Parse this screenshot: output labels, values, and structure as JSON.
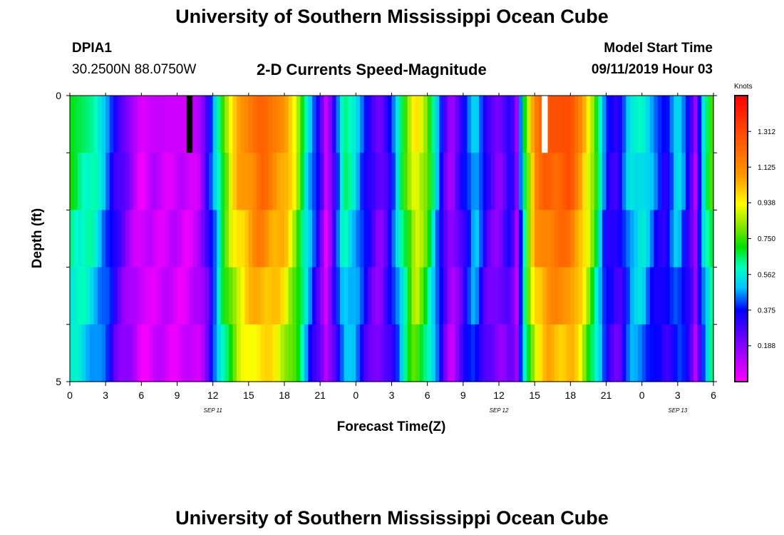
{
  "header": {
    "title": "University of Southern Mississippi Ocean Cube",
    "station": "DPIA1",
    "location": "30.2500N 88.0750W",
    "product": "2-D Currents Speed-Magnitude",
    "model_label": "Model Start Time",
    "model_time": "09/11/2019 Hour 03"
  },
  "footer": {
    "title": "University of Southern Mississippi Ocean Cube"
  },
  "chart_data": {
    "type": "heatmap",
    "xlabel": "Forecast Time(Z)",
    "ylabel": "Depth (ft)",
    "x_tick_labels": [
      "0",
      "3",
      "6",
      "9",
      "12",
      "15",
      "18",
      "21",
      "0",
      "3",
      "6",
      "9",
      "12",
      "15",
      "18",
      "21",
      "0",
      "3",
      "6"
    ],
    "x_hours": [
      0,
      3,
      6,
      9,
      12,
      15,
      18,
      21,
      24,
      27,
      30,
      33,
      36,
      39,
      42,
      45,
      48,
      51,
      54
    ],
    "x_range_hours": [
      0,
      54
    ],
    "date_labels": [
      {
        "text": "SEP 11",
        "hour": 12
      },
      {
        "text": "SEP 12",
        "hour": 36
      },
      {
        "text": "SEP 13",
        "hour": 51
      }
    ],
    "y_tick_labels": [
      "0",
      "5"
    ],
    "y_range": [
      0,
      5
    ],
    "y_minor_ticks": [
      0,
      1,
      2,
      3,
      4,
      5
    ],
    "depth_layers": 5,
    "colorbar": {
      "unit": "Knots",
      "range": [
        0,
        1.5
      ],
      "ticks": [
        "1.312",
        "1.125",
        "0.938",
        "0.750",
        "0.562",
        "0.375",
        "0.188"
      ],
      "tick_values": [
        1.312,
        1.125,
        0.938,
        0.75,
        0.562,
        0.375,
        0.188
      ]
    },
    "speed_profile_knots": [
      {
        "hour": 0,
        "v": 0.7
      },
      {
        "hour": 2,
        "v": 0.62
      },
      {
        "hour": 3.3,
        "v": 0.45
      },
      {
        "hour": 4,
        "v": 0.3
      },
      {
        "hour": 5,
        "v": 0.18
      },
      {
        "hour": 6,
        "v": 0.05
      },
      {
        "hour": 7,
        "v": 0.09
      },
      {
        "hour": 10,
        "v": 0.07
      },
      {
        "hour": 10.8,
        "v": 0.12
      },
      {
        "hour": 11.3,
        "v": 0.22
      },
      {
        "hour": 12,
        "v": 0.45
      },
      {
        "hour": 13,
        "v": 0.8
      },
      {
        "hour": 14,
        "v": 1.05
      },
      {
        "hour": 16,
        "v": 1.25
      },
      {
        "hour": 18,
        "v": 1.1
      },
      {
        "hour": 19,
        "v": 0.9
      },
      {
        "hour": 20,
        "v": 0.55
      },
      {
        "hour": 21,
        "v": 0.3
      },
      {
        "hour": 21.5,
        "v": 0.08
      },
      {
        "hour": 22,
        "v": 0.25
      },
      {
        "hour": 23,
        "v": 0.65
      },
      {
        "hour": 24,
        "v": 0.55
      },
      {
        "hour": 25,
        "v": 0.35
      },
      {
        "hour": 26,
        "v": 0.2
      },
      {
        "hour": 27,
        "v": 0.4
      },
      {
        "hour": 28,
        "v": 0.7
      },
      {
        "hour": 29,
        "v": 1.0
      },
      {
        "hour": 30,
        "v": 0.8
      },
      {
        "hour": 31,
        "v": 0.45
      },
      {
        "hour": 32,
        "v": 0.12
      },
      {
        "hour": 33,
        "v": 0.35
      },
      {
        "hour": 34,
        "v": 0.55
      },
      {
        "hour": 35,
        "v": 0.3
      },
      {
        "hour": 36,
        "v": 0.2
      },
      {
        "hour": 37,
        "v": 0.35
      },
      {
        "hour": 37.5,
        "v": 0.15
      },
      {
        "hour": 38,
        "v": 0.6
      },
      {
        "hour": 39,
        "v": 1.15
      },
      {
        "hour": 40,
        "v": 1.28
      },
      {
        "hour": 42,
        "v": 1.3
      },
      {
        "hour": 43,
        "v": 1.1
      },
      {
        "hour": 44,
        "v": 0.8
      },
      {
        "hour": 45,
        "v": 0.4
      },
      {
        "hour": 46,
        "v": 0.3
      },
      {
        "hour": 47,
        "v": 0.55
      },
      {
        "hour": 48,
        "v": 0.6
      },
      {
        "hour": 49,
        "v": 0.45
      },
      {
        "hour": 50,
        "v": 0.35
      },
      {
        "hour": 51,
        "v": 0.55
      },
      {
        "hour": 52,
        "v": 0.35
      },
      {
        "hour": 52.5,
        "v": 0.15
      },
      {
        "hour": 53,
        "v": 0.5
      },
      {
        "hour": 54,
        "v": 0.8
      }
    ],
    "depth_factor": [
      1.0,
      0.97,
      0.92,
      0.86,
      0.8
    ],
    "missing_cells": [
      {
        "hour_start": 9.8,
        "hour_end": 10.3,
        "layer": 0,
        "color": "#000000"
      },
      {
        "hour_start": 39.6,
        "hour_end": 40.1,
        "layer": 0,
        "color": "#ffffff"
      }
    ]
  }
}
